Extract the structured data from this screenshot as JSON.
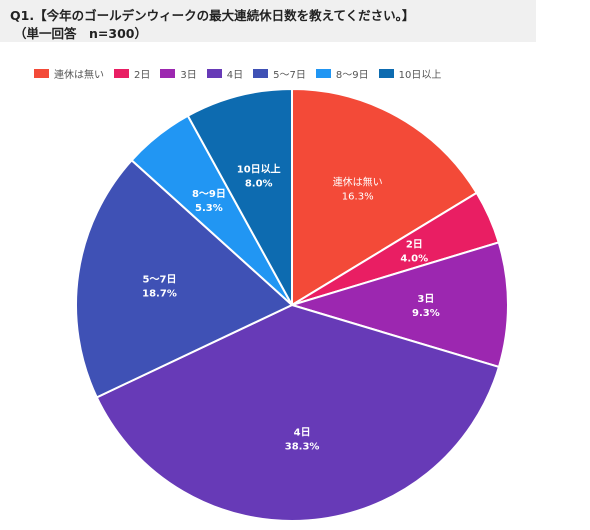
{
  "header": {
    "title_line1": "Q1.【今年のゴールデンウィークの最大連続休日数を教えてください。】",
    "title_line2": "（単一回答　n=300）"
  },
  "chart_data": {
    "type": "pie",
    "title": "Q1.【今年のゴールデンウィークの最大連続休日数を教えてください。】",
    "subtitle": "（単一回答　n=300）",
    "legend_position": "top",
    "start_angle_deg": 0,
    "direction": "clockwise",
    "slices": [
      {
        "label": "連休は無い",
        "value": 16.3,
        "value_label": "16.3%",
        "color": "#f34a38"
      },
      {
        "label": "2日",
        "value": 4.0,
        "value_label": "4.0%",
        "color": "#e91e63"
      },
      {
        "label": "3日",
        "value": 9.3,
        "value_label": "9.3%",
        "color": "#9c27b0"
      },
      {
        "label": "4日",
        "value": 38.3,
        "value_label": "38.3%",
        "color": "#673ab7"
      },
      {
        "label": "5〜7日",
        "value": 18.7,
        "value_label": "18.7%",
        "color": "#3f51b5"
      },
      {
        "label": "8〜9日",
        "value": 5.3,
        "value_label": "5.3%",
        "color": "#2196f3"
      },
      {
        "label": "10日以上",
        "value": 8.0,
        "value_label": "8.0%",
        "color": "#0d6bb0"
      }
    ]
  }
}
